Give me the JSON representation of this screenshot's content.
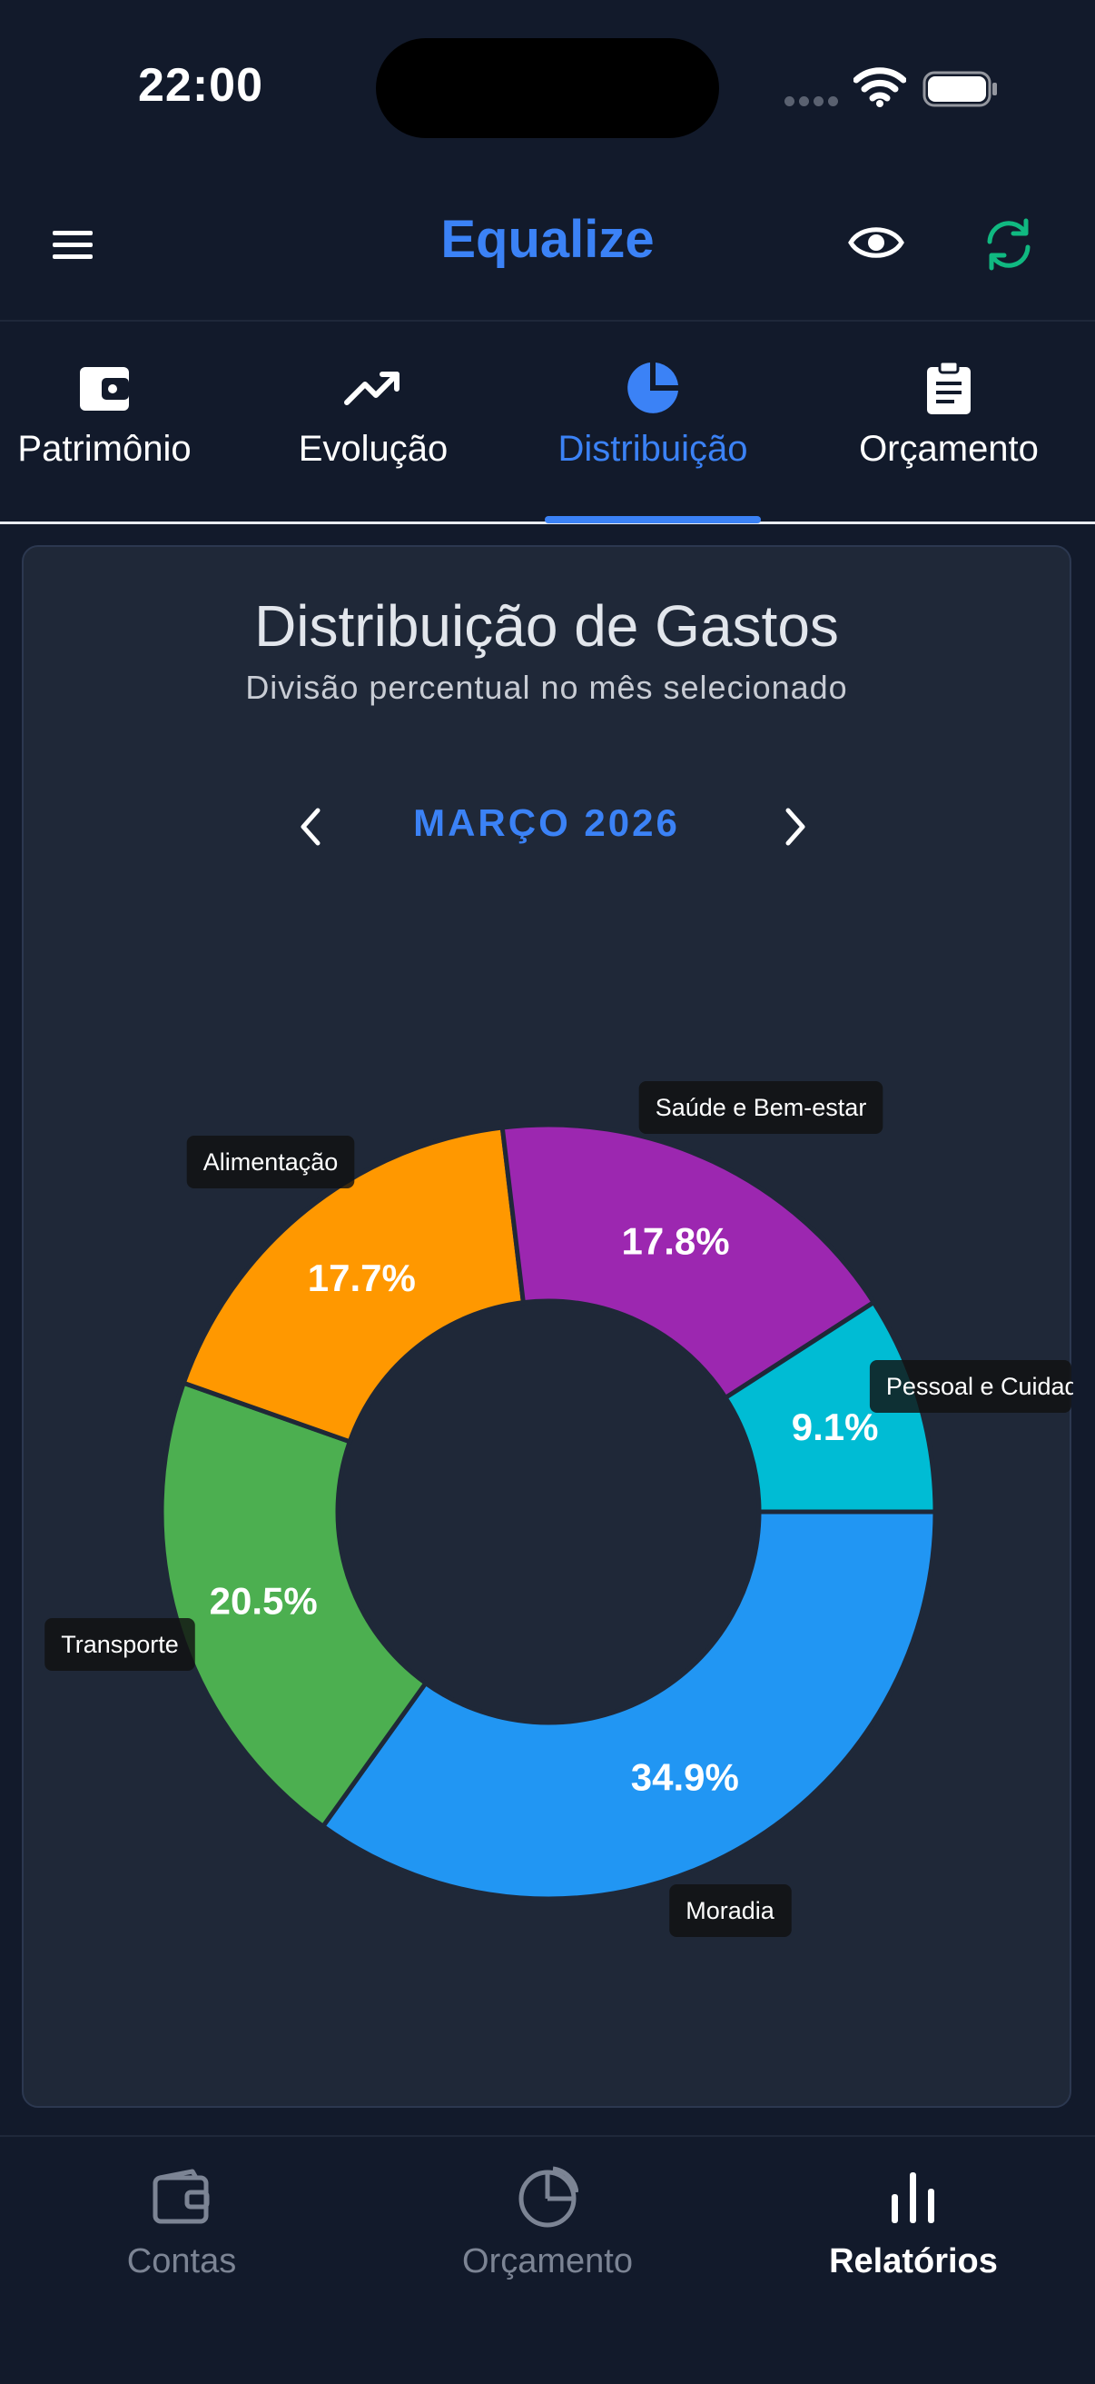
{
  "status_bar": {
    "time": "22:00"
  },
  "header": {
    "title": "Equalize"
  },
  "tabs": [
    {
      "label": "Patrimônio",
      "icon": "wallet-icon"
    },
    {
      "label": "Evolução",
      "icon": "trending-up-icon"
    },
    {
      "label": "Distribuição",
      "icon": "pie-chart-icon",
      "active": true
    },
    {
      "label": "Orçamento",
      "icon": "clipboard-icon"
    }
  ],
  "card": {
    "title": "Distribuição de Gastos",
    "subtitle": "Divisão percentual no mês selecionado",
    "month": "MARÇO 2026"
  },
  "chart_data": {
    "type": "pie",
    "donut": true,
    "categories": [
      "Moradia",
      "Transporte",
      "Alimentação",
      "Saúde e Bem-estar",
      "Pessoal e Cuidados"
    ],
    "values": [
      34.9,
      20.5,
      17.7,
      17.8,
      9.1
    ],
    "value_labels": [
      "34.9%",
      "20.5%",
      "17.7%",
      "17.8%",
      "9.1%"
    ],
    "colors": [
      "#2196f3",
      "#4caf50",
      "#ff9800",
      "#9c27b0",
      "#00bcd4"
    ]
  },
  "bottom_nav": [
    {
      "label": "Contas",
      "icon": "wallet-icon"
    },
    {
      "label": "Orçamento",
      "icon": "pie-chart-icon"
    },
    {
      "label": "Relatórios",
      "icon": "bar-chart-icon",
      "active": true
    }
  ]
}
